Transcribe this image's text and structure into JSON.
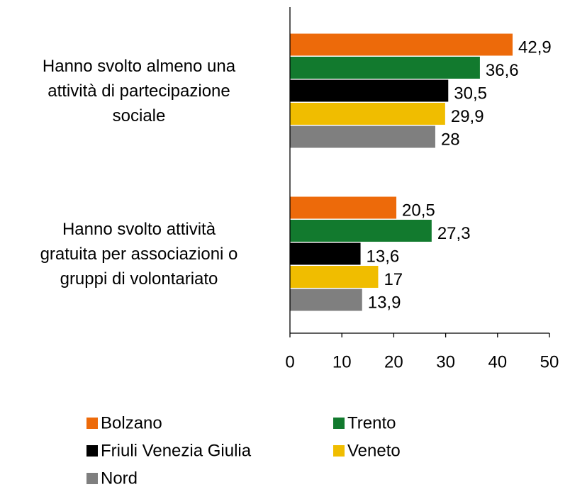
{
  "chart_data": {
    "type": "hbar",
    "categories": [
      "Hanno svolto almeno una\nattività di partecipazione\nsociale",
      "Hanno svolto attività\ngratuita per associazioni o\ngruppi di volontariato"
    ],
    "series": [
      {
        "name": "Bolzano",
        "color": "#ed6a0a",
        "values": [
          42.9,
          20.5
        ],
        "value_labels": [
          "42,9",
          "20,5"
        ]
      },
      {
        "name": "Trento",
        "color": "#127a2e",
        "values": [
          36.6,
          27.3
        ],
        "value_labels": [
          "36,6",
          "27,3"
        ]
      },
      {
        "name": "Friuli Venezia Giulia",
        "color": "#000000",
        "values": [
          30.5,
          13.6
        ],
        "value_labels": [
          "30,5",
          "13,6"
        ]
      },
      {
        "name": "Veneto",
        "color": "#f0bd00",
        "values": [
          29.9,
          17
        ],
        "value_labels": [
          "29,9",
          "17"
        ]
      },
      {
        "name": "Nord",
        "color": "#7f7f7f",
        "values": [
          28,
          13.9
        ],
        "value_labels": [
          "28",
          "13,9"
        ]
      }
    ],
    "xlim": [
      0,
      50
    ],
    "xticks": [
      0,
      10,
      20,
      30,
      40,
      50
    ]
  }
}
